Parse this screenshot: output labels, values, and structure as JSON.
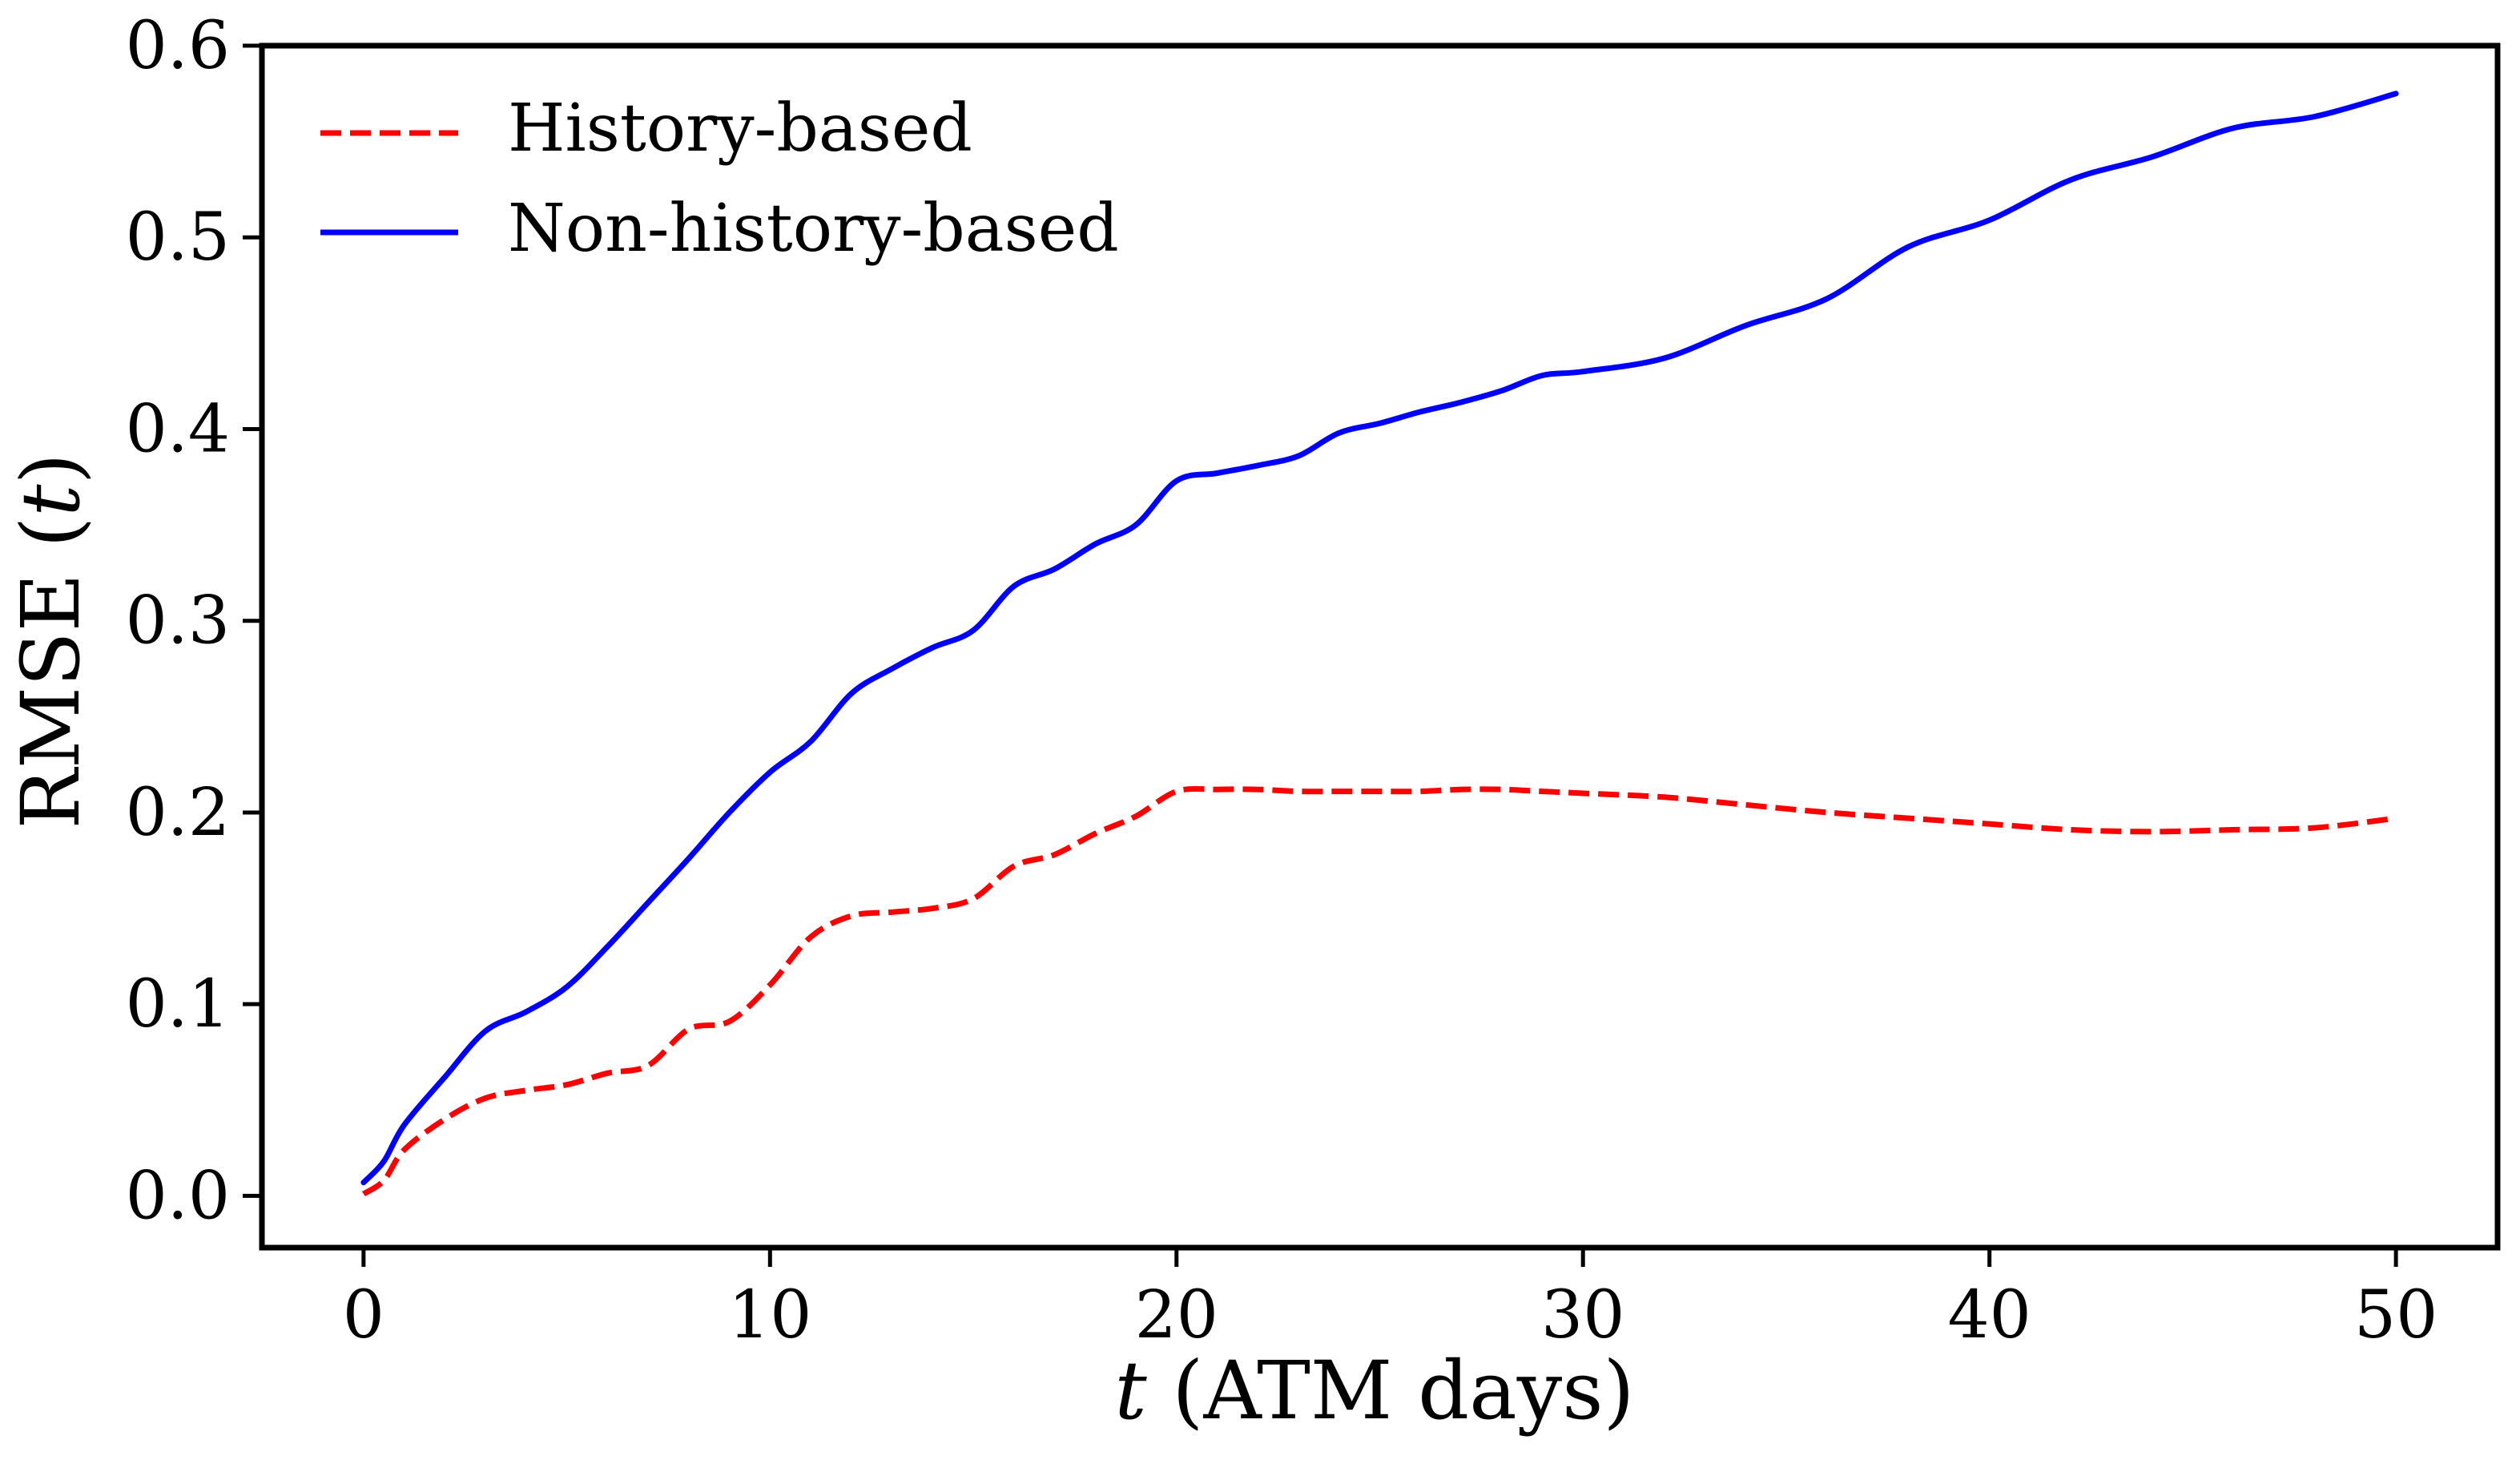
{
  "chart_data": {
    "type": "line",
    "title": "",
    "xlabel_italic": "t",
    "xlabel_rest": " (ATM days)",
    "ylabel_prefix": "RMSE (",
    "ylabel_italic": "t",
    "ylabel_suffix": ")",
    "xlim": [
      -2.5,
      52.5
    ],
    "ylim": [
      -0.027,
      0.6
    ],
    "xticks": [
      0,
      10,
      20,
      30,
      40,
      50
    ],
    "xtick_labels": [
      "0",
      "10",
      "20",
      "30",
      "40",
      "50"
    ],
    "yticks": [
      0.0,
      0.1,
      0.2,
      0.3,
      0.4,
      0.5,
      0.6
    ],
    "ytick_labels": [
      "0.0",
      "0.1",
      "0.2",
      "0.3",
      "0.4",
      "0.5",
      "0.6"
    ],
    "grid": false,
    "legend_position": "top-left",
    "series": [
      {
        "name": "History-based",
        "color": "#ff0000",
        "style": "dashed",
        "x": [
          0,
          0.5,
          1,
          2,
          3,
          4,
          5,
          6,
          7,
          8,
          9,
          10,
          11,
          12,
          13,
          14,
          15,
          16,
          17,
          18,
          19,
          20,
          21,
          22,
          23,
          24,
          25,
          26,
          27,
          28,
          29,
          30,
          32,
          34,
          36,
          38,
          40,
          42,
          44,
          46,
          48,
          50
        ],
        "y": [
          0.001,
          0.008,
          0.024,
          0.04,
          0.051,
          0.055,
          0.058,
          0.064,
          0.068,
          0.087,
          0.091,
          0.11,
          0.135,
          0.146,
          0.148,
          0.15,
          0.155,
          0.172,
          0.178,
          0.189,
          0.198,
          0.211,
          0.212,
          0.212,
          0.211,
          0.211,
          0.211,
          0.211,
          0.212,
          0.212,
          0.211,
          0.21,
          0.208,
          0.204,
          0.2,
          0.197,
          0.194,
          0.191,
          0.19,
          0.191,
          0.192,
          0.197
        ]
      },
      {
        "name": "Non-history-based",
        "color": "#0000ff",
        "style": "solid",
        "x": [
          0,
          0.5,
          1,
          2,
          3,
          4,
          5,
          6,
          7,
          8,
          9,
          10,
          11,
          12,
          13,
          14,
          15,
          16,
          17,
          18,
          19,
          20,
          21,
          22,
          23,
          24,
          25,
          26,
          27,
          28,
          29,
          30,
          32,
          34,
          36,
          38,
          40,
          42,
          44,
          46,
          48,
          50
        ],
        "y": [
          0.007,
          0.018,
          0.037,
          0.062,
          0.086,
          0.096,
          0.109,
          0.13,
          0.153,
          0.176,
          0.2,
          0.221,
          0.237,
          0.262,
          0.275,
          0.286,
          0.295,
          0.318,
          0.327,
          0.34,
          0.35,
          0.373,
          0.377,
          0.381,
          0.386,
          0.398,
          0.403,
          0.409,
          0.414,
          0.42,
          0.428,
          0.43,
          0.437,
          0.454,
          0.468,
          0.495,
          0.509,
          0.53,
          0.542,
          0.557,
          0.563,
          0.575
        ]
      }
    ]
  }
}
